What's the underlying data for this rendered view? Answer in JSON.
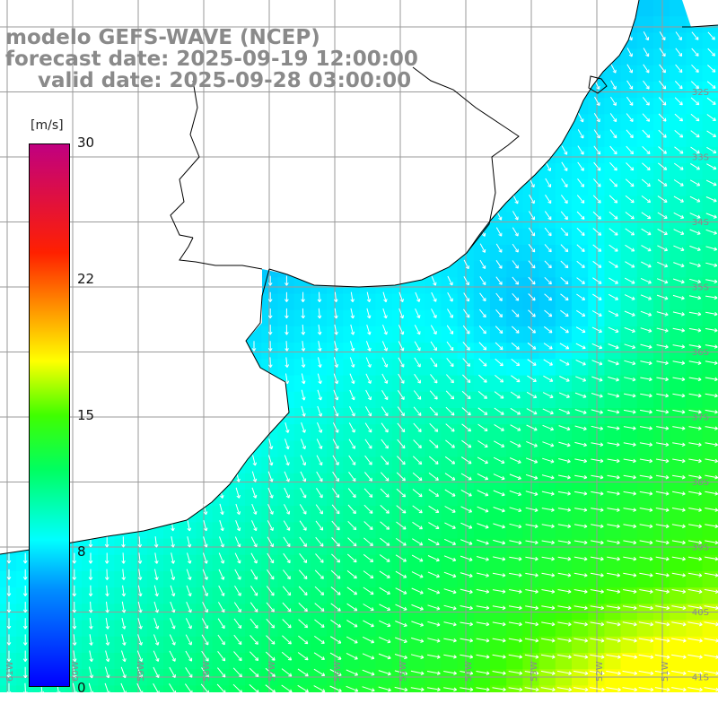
{
  "header": {
    "model_line": "modelo GEFS-WAVE (NCEP)",
    "forecast_line": "forecast date: 2025-09-19 12:00:00",
    "valid_line": "valid date: 2025-09-28 03:00:00"
  },
  "colorbar": {
    "unit": "[m/s]",
    "ticks": [
      "30",
      "22",
      "15",
      "8",
      "0"
    ],
    "tick_values": [
      30,
      22,
      15,
      8,
      0
    ],
    "range": [
      0,
      30
    ],
    "colors": [
      "#0000ff",
      "#00a0ff",
      "#00ffff",
      "#00ff40",
      "#ffff00",
      "#ff7f00",
      "#ff0000",
      "#c00070"
    ]
  },
  "map": {
    "lat_labels": [
      "32S",
      "33S",
      "34S",
      "35S",
      "36S",
      "37S",
      "38S",
      "39S",
      "40S",
      "41S"
    ],
    "lon_labels": [
      "61W",
      "60W",
      "59W",
      "58W",
      "57W",
      "56W",
      "55W",
      "54W",
      "53W",
      "52W",
      "51W"
    ],
    "land_color": "#ffffff",
    "grid_color": "#9a9a9a",
    "coast_color": "#000000",
    "arrow_color": "#ffffff"
  }
}
